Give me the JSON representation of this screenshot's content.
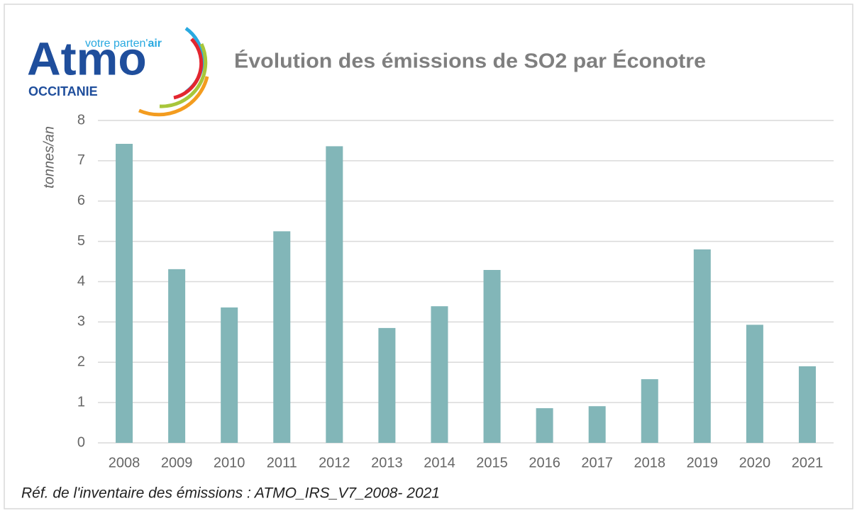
{
  "logo": {
    "name": "Atmo",
    "tagline_start": "votre parten'",
    "tagline_end": "air",
    "region": "OCCITANIE"
  },
  "chart_data": {
    "type": "bar",
    "title": "Évolution des émissions de SO2 par Éconotre",
    "y_label": "tonnes/an",
    "footnote": "Réf. de l'inventaire des émissions : ATMO_IRS_V7_2008- 2021",
    "categories": [
      "2008",
      "2009",
      "2010",
      "2011",
      "2012",
      "2013",
      "2014",
      "2015",
      "2016",
      "2017",
      "2018",
      "2019",
      "2020",
      "2021"
    ],
    "values": [
      7.42,
      4.31,
      3.36,
      5.25,
      7.36,
      2.85,
      3.39,
      4.29,
      0.86,
      0.91,
      1.58,
      4.8,
      2.93,
      1.9
    ],
    "color": "#82b6b8",
    "ylim": [
      0,
      8
    ],
    "yticks": [
      0,
      1,
      2,
      3,
      4,
      5,
      6,
      7,
      8
    ],
    "grid": true
  }
}
